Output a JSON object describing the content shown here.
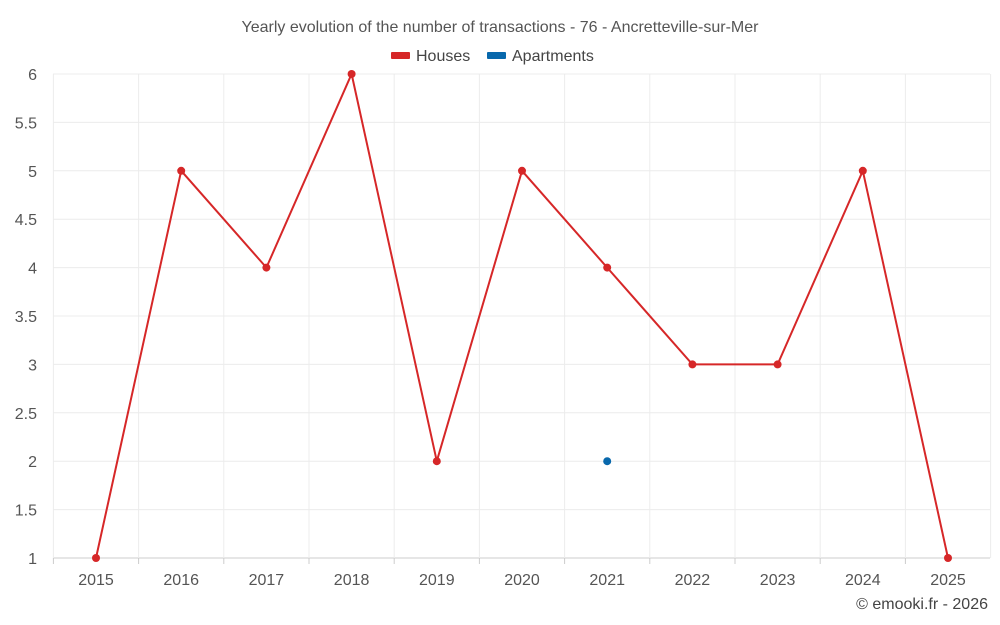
{
  "chart_data": {
    "type": "line",
    "title": "Yearly evolution of the number of transactions - 76 - Ancretteville-sur-Mer",
    "categories": [
      "2015",
      "2016",
      "2017",
      "2018",
      "2019",
      "2020",
      "2021",
      "2022",
      "2023",
      "2024",
      "2025"
    ],
    "series": [
      {
        "name": "Houses",
        "color": "#d62728",
        "values": [
          1,
          5,
          4,
          6,
          2,
          5,
          4,
          3,
          3,
          5,
          1
        ]
      },
      {
        "name": "Apartments",
        "color": "#0868ac",
        "values": [
          null,
          null,
          null,
          null,
          null,
          null,
          2,
          null,
          null,
          null,
          null
        ]
      }
    ],
    "ylim": [
      1,
      6
    ],
    "yticks": [
      "1",
      "1.5",
      "2",
      "2.5",
      "3",
      "3.5",
      "4",
      "4.5",
      "5",
      "5.5",
      "6"
    ],
    "xlabel": "",
    "ylabel": "",
    "grid": true,
    "legend": "top-center"
  },
  "footer": {
    "copyright": "© emooki.fr - 2026"
  }
}
